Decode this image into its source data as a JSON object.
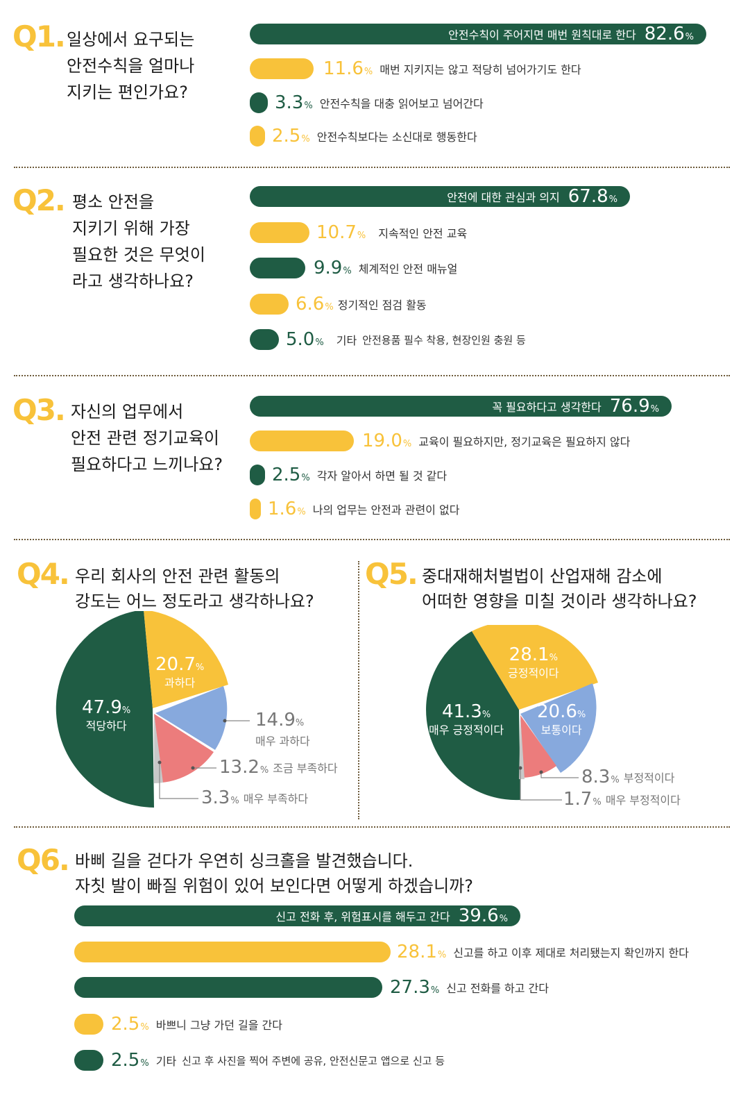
{
  "colors": {
    "green": "#1f5c44",
    "yellow": "#f8c23a",
    "blue": "#87a9dd",
    "red": "#ec7c7c",
    "grey": "#c8c8c8"
  },
  "q1": {
    "num": "Q1.",
    "lines": [
      "일상에서 요구되는",
      "안전수칙을 얼마나",
      "지키는 편인가요?"
    ],
    "items": [
      {
        "value": "82.6",
        "label": "안전수칙이 주어지면 매번 원칙대로 한다"
      },
      {
        "value": "11.6",
        "label": "매번 지키지는 않고 적당히 넘어가기도 한다"
      },
      {
        "value": "3.3",
        "label": "안전수칙을 대충 읽어보고 넘어간다"
      },
      {
        "value": "2.5",
        "label": "안전수칙보다는 소신대로 행동한다"
      }
    ]
  },
  "q2": {
    "num": "Q2.",
    "lines": [
      "평소 안전을",
      "지키기 위해 가장",
      "필요한 것은 무엇이",
      "라고 생각하나요?"
    ],
    "items": [
      {
        "value": "67.8",
        "label": "안전에 대한 관심과 의지"
      },
      {
        "value": "10.7",
        "label": "지속적인 안전 교육"
      },
      {
        "value": "9.9",
        "label": "체계적인 안전 매뉴얼"
      },
      {
        "value": "6.6",
        "label": "정기적인 점검 활동"
      },
      {
        "value": "5.0",
        "label": "기타",
        "note": "안전용품 필수 착용, 현장인원 충원 등"
      }
    ]
  },
  "q3": {
    "num": "Q3.",
    "lines": [
      "자신의 업무에서",
      "안전 관련 정기교육이",
      "필요하다고 느끼나요?"
    ],
    "items": [
      {
        "value": "76.9",
        "label": "꼭 필요하다고 생각한다"
      },
      {
        "value": "19.0",
        "label": "교육이 필요하지만, 정기교육은 필요하지 않다"
      },
      {
        "value": "2.5",
        "label": "각자 알아서 하면 될 것 같다"
      },
      {
        "value": "1.6",
        "label": "나의 업무는 안전과 관련이 없다"
      }
    ]
  },
  "q4": {
    "num": "Q4.",
    "lines": [
      "우리 회사의 안전 관련 활동의",
      "강도는 어느 정도라고 생각하나요?"
    ],
    "slices": [
      {
        "value": "47.9",
        "label": "적당하다"
      },
      {
        "value": "20.7",
        "label": "과하다"
      },
      {
        "value": "14.9",
        "label": "매우 과하다"
      },
      {
        "value": "13.2",
        "label": "조금 부족하다"
      },
      {
        "value": "3.3",
        "label": "매우 부족하다"
      }
    ]
  },
  "q5": {
    "num": "Q5.",
    "lines": [
      "중대재해처벌법이 산업재해 감소에",
      "어떠한 영향을 미칠 것이라 생각하나요?"
    ],
    "slices": [
      {
        "value": "41.3",
        "label": "매우 긍정적이다"
      },
      {
        "value": "28.1",
        "label": "긍정적이다"
      },
      {
        "value": "20.6",
        "label": "보통이다"
      },
      {
        "value": "8.3",
        "label": "부정적이다"
      },
      {
        "value": "1.7",
        "label": "매우 부정적이다"
      }
    ]
  },
  "q6": {
    "num": "Q6.",
    "lines": [
      "바삐 길을 걷다가 우연히 싱크홀을 발견했습니다.",
      "자칫 발이 빠질 위험이 있어 보인다면 어떻게 하겠습니까?"
    ],
    "items": [
      {
        "value": "39.6",
        "label": "신고 전화 후, 위험표시를 해두고 간다"
      },
      {
        "value": "28.1",
        "label": "신고를 하고 이후 제대로 처리됐는지 확인까지 한다"
      },
      {
        "value": "27.3",
        "label": "신고 전화를 하고 간다"
      },
      {
        "value": "2.5",
        "label": "바쁘니 그냥 가던 길을 간다"
      },
      {
        "value": "2.5",
        "label": "기타",
        "note": "신고 후 사진을 찍어 주변에 공유, 안전신문고 앱으로 신고 등"
      }
    ]
  },
  "pct_sign": "%",
  "chart_data": [
    {
      "type": "bar",
      "title": "일상에서 요구되는 안전수칙을 얼마나 지키는 편인가요?",
      "categories": [
        "안전수칙이 주어지면 매번 원칙대로 한다",
        "매번 지키지는 않고 적당히 넘어가기도 한다",
        "안전수칙을 대충 읽어보고 넘어간다",
        "안전수칙보다는 소신대로 행동한다"
      ],
      "values": [
        82.6,
        11.6,
        3.3,
        2.5
      ]
    },
    {
      "type": "bar",
      "title": "평소 안전을 지키기 위해 가장 필요한 것은 무엇이라고 생각하나요?",
      "categories": [
        "안전에 대한 관심과 의지",
        "지속적인 안전 교육",
        "체계적인 안전 매뉴얼",
        "정기적인 점검 활동",
        "기타"
      ],
      "values": [
        67.8,
        10.7,
        9.9,
        6.6,
        5.0
      ]
    },
    {
      "type": "bar",
      "title": "자신의 업무에서 안전 관련 정기교육이 필요하다고 느끼나요?",
      "categories": [
        "꼭 필요하다고 생각한다",
        "교육이 필요하지만, 정기교육은 필요하지 않다",
        "각자 알아서 하면 될 것 같다",
        "나의 업무는 안전과 관련이 없다"
      ],
      "values": [
        76.9,
        19.0,
        2.5,
        1.6
      ]
    },
    {
      "type": "pie",
      "title": "우리 회사의 안전 관련 활동의 강도는 어느 정도라고 생각하나요?",
      "categories": [
        "적당하다",
        "과하다",
        "매우 과하다",
        "조금 부족하다",
        "매우 부족하다"
      ],
      "values": [
        47.9,
        20.7,
        14.9,
        13.2,
        3.3
      ]
    },
    {
      "type": "pie",
      "title": "중대재해처벌법이 산업재해 감소에 어떠한 영향을 미칠 것이라 생각하나요?",
      "categories": [
        "매우 긍정적이다",
        "긍정적이다",
        "보통이다",
        "부정적이다",
        "매우 부정적이다"
      ],
      "values": [
        41.3,
        28.1,
        20.6,
        8.3,
        1.7
      ]
    },
    {
      "type": "bar",
      "title": "바삐 길을 걷다가 우연히 싱크홀을 발견했습니다. 자칫 발이 빠질 위험이 있어 보인다면 어떻게 하겠습니까?",
      "categories": [
        "신고 전화 후, 위험표시를 해두고 간다",
        "신고를 하고 이후 제대로 처리됐는지 확인까지 한다",
        "신고 전화를 하고 간다",
        "바쁘니 그냥 가던 길을 간다",
        "기타"
      ],
      "values": [
        39.6,
        28.1,
        27.3,
        2.5,
        2.5
      ]
    }
  ]
}
